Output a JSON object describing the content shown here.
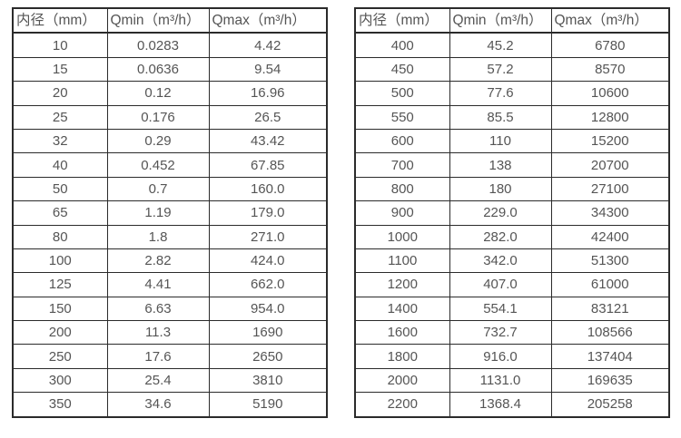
{
  "colors": {
    "text": "#555555",
    "border": "#2b2b2b",
    "background": "#ffffff"
  },
  "tables": [
    {
      "name": "flow-spec-small-diameters",
      "headers": [
        "内径（mm）",
        "Qmin（m³/h）",
        "Qmax（m³/h）"
      ],
      "rows": [
        [
          "10",
          "0.0283",
          "4.42"
        ],
        [
          "15",
          "0.0636",
          "9.54"
        ],
        [
          "20",
          "0.12",
          "16.96"
        ],
        [
          "25",
          "0.176",
          "26.5"
        ],
        [
          "32",
          "0.29",
          "43.42"
        ],
        [
          "40",
          "0.452",
          "67.85"
        ],
        [
          "50",
          "0.7",
          "160.0"
        ],
        [
          "65",
          "1.19",
          "179.0"
        ],
        [
          "80",
          "1.8",
          "271.0"
        ],
        [
          "100",
          "2.82",
          "424.0"
        ],
        [
          "125",
          "4.41",
          "662.0"
        ],
        [
          "150",
          "6.63",
          "954.0"
        ],
        [
          "200",
          "11.3",
          "1690"
        ],
        [
          "250",
          "17.6",
          "2650"
        ],
        [
          "300",
          "25.4",
          "3810"
        ],
        [
          "350",
          "34.6",
          "5190"
        ]
      ]
    },
    {
      "name": "flow-spec-large-diameters",
      "headers": [
        "内径（mm）",
        "Qmin（m³/h）",
        "Qmax（m³/h）"
      ],
      "rows": [
        [
          "400",
          "45.2",
          "6780"
        ],
        [
          "450",
          "57.2",
          "8570"
        ],
        [
          "500",
          "77.6",
          "10600"
        ],
        [
          "550",
          "85.5",
          "12800"
        ],
        [
          "600",
          "110",
          "15200"
        ],
        [
          "700",
          "138",
          "20700"
        ],
        [
          "800",
          "180",
          "27100"
        ],
        [
          "900",
          "229.0",
          "34300"
        ],
        [
          "1000",
          "282.0",
          "42400"
        ],
        [
          "1100",
          "342.0",
          "51300"
        ],
        [
          "1200",
          "407.0",
          "61000"
        ],
        [
          "1400",
          "554.1",
          "83121"
        ],
        [
          "1600",
          "732.7",
          "108566"
        ],
        [
          "1800",
          "916.0",
          "137404"
        ],
        [
          "2000",
          "1131.0",
          "169635"
        ],
        [
          "2200",
          "1368.4",
          "205258"
        ]
      ]
    }
  ]
}
